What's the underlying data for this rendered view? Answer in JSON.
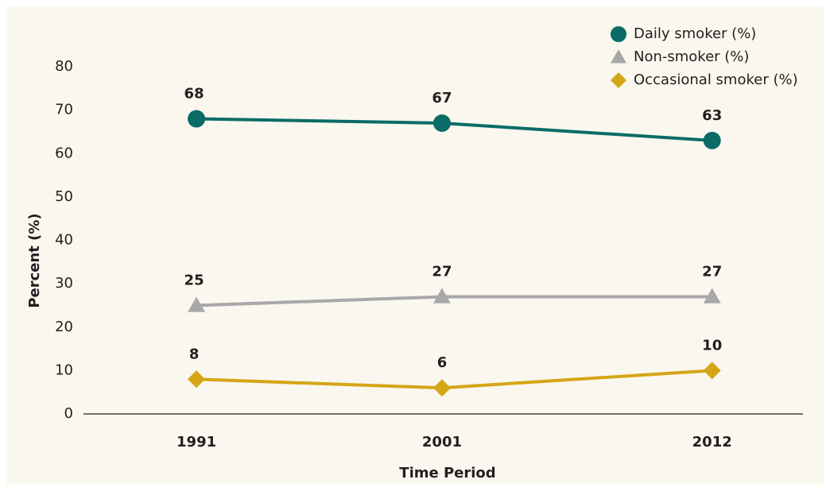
{
  "chart_data": {
    "type": "line",
    "x": [
      1991,
      2001,
      2012
    ],
    "xlim": [
      1986.4,
      2015.7
    ],
    "xticks": [
      1991,
      2001,
      2012
    ],
    "ylim": [
      0,
      80
    ],
    "yticks": [
      0,
      10,
      20,
      30,
      40,
      50,
      60,
      70,
      80
    ],
    "xlabel": "Time Period",
    "ylabel": "Percent (%)",
    "legend": "top-right",
    "grid": false,
    "series": [
      {
        "name": "Daily smoker (%)",
        "color": "#0b6b66",
        "marker": "circle",
        "values": [
          68,
          67,
          63
        ]
      },
      {
        "name": "Non-smoker (%)",
        "color": "#a8a8a8",
        "marker": "triangle",
        "values": [
          25,
          27,
          27
        ]
      },
      {
        "name": "Occasional smoker (%)",
        "color": "#d4a616",
        "marker": "diamond",
        "values": [
          8,
          6,
          10
        ]
      }
    ]
  }
}
